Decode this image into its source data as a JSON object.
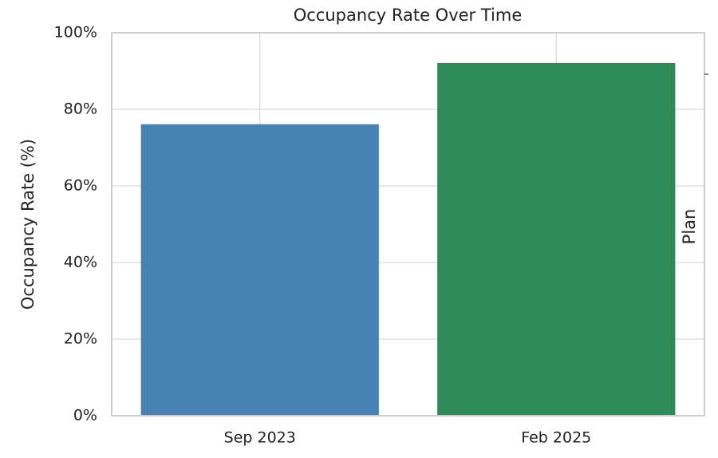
{
  "chart_data": {
    "type": "bar",
    "title": "Occupancy Rate Over Time",
    "y_label": "Occupancy Rate (%)",
    "y2_label": "Plan",
    "categories": [
      "Sep 2023",
      "Feb 2025"
    ],
    "values": [
      76,
      92
    ],
    "colors": [
      "#4682b4",
      "#2e8b57"
    ],
    "ylim": [
      0,
      100
    ],
    "yticks": [
      {
        "value": 0,
        "label": "0%"
      },
      {
        "value": 20,
        "label": "20%"
      },
      {
        "value": 40,
        "label": "40%"
      },
      {
        "value": 60,
        "label": "60%"
      },
      {
        "value": 80,
        "label": "80%"
      },
      {
        "value": 100,
        "label": "100%"
      }
    ],
    "grid": true
  }
}
